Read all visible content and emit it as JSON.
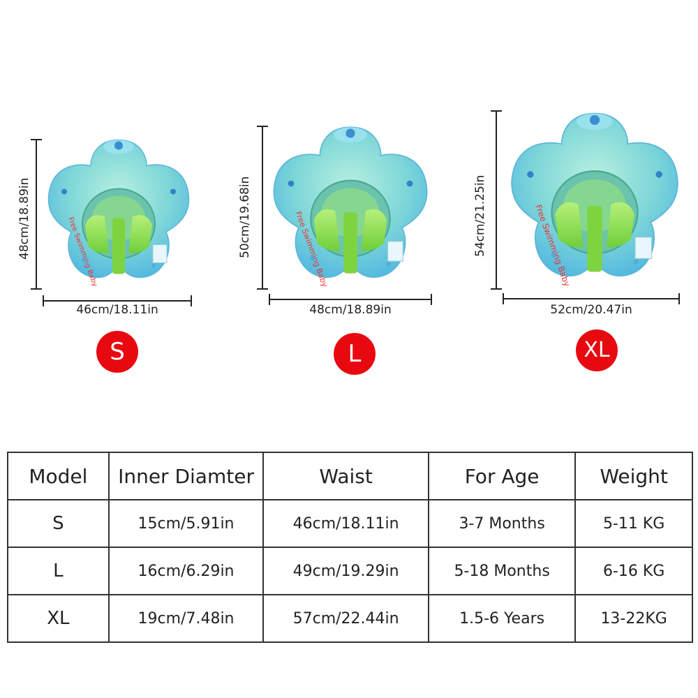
{
  "products": [
    {
      "size": "S",
      "height": "48cm/18.89in",
      "width": "46cm/18.11in"
    },
    {
      "size": "L",
      "height": "50cm/19.68in",
      "width": "48cm/18.89in"
    },
    {
      "size": "XL",
      "height": "54cm/21.25in",
      "width": "52cm/20.47in"
    }
  ],
  "product_image": {
    "brand_text": "Free Swimming Baby",
    "icon": "baby-swim-float"
  },
  "colors": {
    "badge": "#e8080f",
    "float_blue": "#6cc6e6",
    "float_green": "#90e56a"
  },
  "table": {
    "headers": [
      "Model",
      "Inner Diamter",
      "Waist",
      "For Age",
      "Weight"
    ],
    "rows": [
      [
        "S",
        "15cm/5.91in",
        "46cm/18.11in",
        "3-7 Months",
        "5-11 KG"
      ],
      [
        "L",
        "16cm/6.29in",
        "49cm/19.29in",
        "5-18 Months",
        "6-16 KG"
      ],
      [
        "XL",
        "19cm/7.48in",
        "57cm/22.44in",
        "1.5-6 Years",
        "13-22KG"
      ]
    ]
  }
}
